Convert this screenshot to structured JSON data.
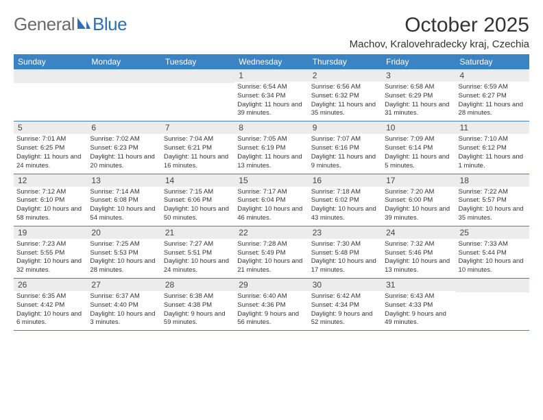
{
  "logo": {
    "part1": "General",
    "part2": "Blue"
  },
  "title": "October 2025",
  "location": "Machov, Kralovehradecky kraj, Czechia",
  "colors": {
    "header_bg": "#3c83c4",
    "header_text": "#ffffff",
    "daynum_bg": "#ececec",
    "border": "#3c83c4",
    "logo_gray": "#6a6a6a",
    "logo_blue": "#2f6fb0"
  },
  "weekdays": [
    "Sunday",
    "Monday",
    "Tuesday",
    "Wednesday",
    "Thursday",
    "Friday",
    "Saturday"
  ],
  "weeks": [
    [
      {
        "n": "",
        "sr": "",
        "ss": "",
        "dl": ""
      },
      {
        "n": "",
        "sr": "",
        "ss": "",
        "dl": ""
      },
      {
        "n": "",
        "sr": "",
        "ss": "",
        "dl": ""
      },
      {
        "n": "1",
        "sr": "Sunrise: 6:54 AM",
        "ss": "Sunset: 6:34 PM",
        "dl": "Daylight: 11 hours and 39 minutes."
      },
      {
        "n": "2",
        "sr": "Sunrise: 6:56 AM",
        "ss": "Sunset: 6:32 PM",
        "dl": "Daylight: 11 hours and 35 minutes."
      },
      {
        "n": "3",
        "sr": "Sunrise: 6:58 AM",
        "ss": "Sunset: 6:29 PM",
        "dl": "Daylight: 11 hours and 31 minutes."
      },
      {
        "n": "4",
        "sr": "Sunrise: 6:59 AM",
        "ss": "Sunset: 6:27 PM",
        "dl": "Daylight: 11 hours and 28 minutes."
      }
    ],
    [
      {
        "n": "5",
        "sr": "Sunrise: 7:01 AM",
        "ss": "Sunset: 6:25 PM",
        "dl": "Daylight: 11 hours and 24 minutes."
      },
      {
        "n": "6",
        "sr": "Sunrise: 7:02 AM",
        "ss": "Sunset: 6:23 PM",
        "dl": "Daylight: 11 hours and 20 minutes."
      },
      {
        "n": "7",
        "sr": "Sunrise: 7:04 AM",
        "ss": "Sunset: 6:21 PM",
        "dl": "Daylight: 11 hours and 16 minutes."
      },
      {
        "n": "8",
        "sr": "Sunrise: 7:05 AM",
        "ss": "Sunset: 6:19 PM",
        "dl": "Daylight: 11 hours and 13 minutes."
      },
      {
        "n": "9",
        "sr": "Sunrise: 7:07 AM",
        "ss": "Sunset: 6:16 PM",
        "dl": "Daylight: 11 hours and 9 minutes."
      },
      {
        "n": "10",
        "sr": "Sunrise: 7:09 AM",
        "ss": "Sunset: 6:14 PM",
        "dl": "Daylight: 11 hours and 5 minutes."
      },
      {
        "n": "11",
        "sr": "Sunrise: 7:10 AM",
        "ss": "Sunset: 6:12 PM",
        "dl": "Daylight: 11 hours and 1 minute."
      }
    ],
    [
      {
        "n": "12",
        "sr": "Sunrise: 7:12 AM",
        "ss": "Sunset: 6:10 PM",
        "dl": "Daylight: 10 hours and 58 minutes."
      },
      {
        "n": "13",
        "sr": "Sunrise: 7:14 AM",
        "ss": "Sunset: 6:08 PM",
        "dl": "Daylight: 10 hours and 54 minutes."
      },
      {
        "n": "14",
        "sr": "Sunrise: 7:15 AM",
        "ss": "Sunset: 6:06 PM",
        "dl": "Daylight: 10 hours and 50 minutes."
      },
      {
        "n": "15",
        "sr": "Sunrise: 7:17 AM",
        "ss": "Sunset: 6:04 PM",
        "dl": "Daylight: 10 hours and 46 minutes."
      },
      {
        "n": "16",
        "sr": "Sunrise: 7:18 AM",
        "ss": "Sunset: 6:02 PM",
        "dl": "Daylight: 10 hours and 43 minutes."
      },
      {
        "n": "17",
        "sr": "Sunrise: 7:20 AM",
        "ss": "Sunset: 6:00 PM",
        "dl": "Daylight: 10 hours and 39 minutes."
      },
      {
        "n": "18",
        "sr": "Sunrise: 7:22 AM",
        "ss": "Sunset: 5:57 PM",
        "dl": "Daylight: 10 hours and 35 minutes."
      }
    ],
    [
      {
        "n": "19",
        "sr": "Sunrise: 7:23 AM",
        "ss": "Sunset: 5:55 PM",
        "dl": "Daylight: 10 hours and 32 minutes."
      },
      {
        "n": "20",
        "sr": "Sunrise: 7:25 AM",
        "ss": "Sunset: 5:53 PM",
        "dl": "Daylight: 10 hours and 28 minutes."
      },
      {
        "n": "21",
        "sr": "Sunrise: 7:27 AM",
        "ss": "Sunset: 5:51 PM",
        "dl": "Daylight: 10 hours and 24 minutes."
      },
      {
        "n": "22",
        "sr": "Sunrise: 7:28 AM",
        "ss": "Sunset: 5:49 PM",
        "dl": "Daylight: 10 hours and 21 minutes."
      },
      {
        "n": "23",
        "sr": "Sunrise: 7:30 AM",
        "ss": "Sunset: 5:48 PM",
        "dl": "Daylight: 10 hours and 17 minutes."
      },
      {
        "n": "24",
        "sr": "Sunrise: 7:32 AM",
        "ss": "Sunset: 5:46 PM",
        "dl": "Daylight: 10 hours and 13 minutes."
      },
      {
        "n": "25",
        "sr": "Sunrise: 7:33 AM",
        "ss": "Sunset: 5:44 PM",
        "dl": "Daylight: 10 hours and 10 minutes."
      }
    ],
    [
      {
        "n": "26",
        "sr": "Sunrise: 6:35 AM",
        "ss": "Sunset: 4:42 PM",
        "dl": "Daylight: 10 hours and 6 minutes."
      },
      {
        "n": "27",
        "sr": "Sunrise: 6:37 AM",
        "ss": "Sunset: 4:40 PM",
        "dl": "Daylight: 10 hours and 3 minutes."
      },
      {
        "n": "28",
        "sr": "Sunrise: 6:38 AM",
        "ss": "Sunset: 4:38 PM",
        "dl": "Daylight: 9 hours and 59 minutes."
      },
      {
        "n": "29",
        "sr": "Sunrise: 6:40 AM",
        "ss": "Sunset: 4:36 PM",
        "dl": "Daylight: 9 hours and 56 minutes."
      },
      {
        "n": "30",
        "sr": "Sunrise: 6:42 AM",
        "ss": "Sunset: 4:34 PM",
        "dl": "Daylight: 9 hours and 52 minutes."
      },
      {
        "n": "31",
        "sr": "Sunrise: 6:43 AM",
        "ss": "Sunset: 4:33 PM",
        "dl": "Daylight: 9 hours and 49 minutes."
      },
      {
        "n": "",
        "sr": "",
        "ss": "",
        "dl": ""
      }
    ]
  ]
}
